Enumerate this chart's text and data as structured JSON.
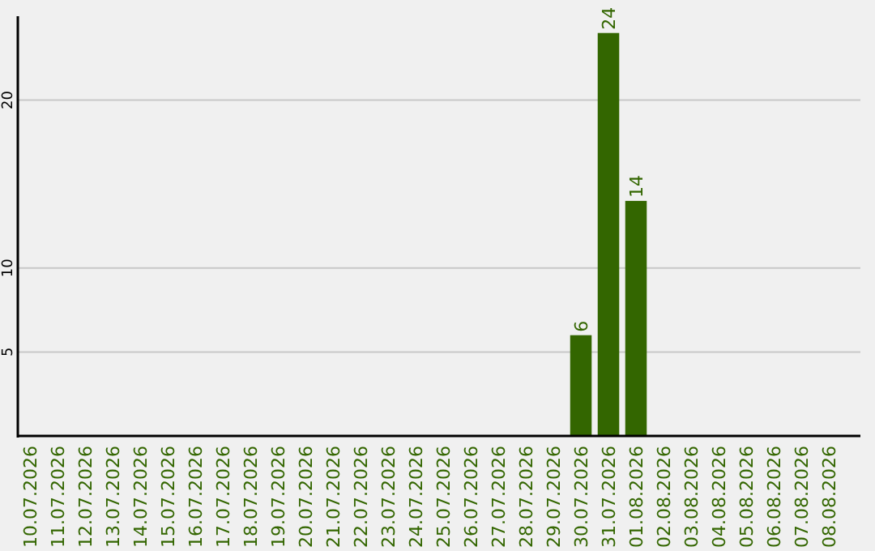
{
  "chart_data": {
    "type": "bar",
    "categories": [
      "10.07.2026",
      "11.07.2026",
      "12.07.2026",
      "13.07.2026",
      "14.07.2026",
      "15.07.2026",
      "16.07.2026",
      "17.07.2026",
      "18.07.2026",
      "19.07.2026",
      "20.07.2026",
      "21.07.2026",
      "22.07.2026",
      "23.07.2026",
      "24.07.2026",
      "25.07.2026",
      "26.07.2026",
      "27.07.2026",
      "28.07.2026",
      "29.07.2026",
      "30.07.2026",
      "31.07.2026",
      "01.08.2026",
      "02.08.2026",
      "03.08.2026",
      "04.08.2026",
      "05.08.2026",
      "06.08.2026",
      "07.08.2026",
      "08.08.2026"
    ],
    "values": [
      0,
      0,
      0,
      0,
      0,
      0,
      0,
      0,
      0,
      0,
      0,
      0,
      0,
      0,
      0,
      0,
      0,
      0,
      0,
      0,
      6,
      24,
      14,
      0,
      0,
      0,
      0,
      0,
      0,
      0
    ],
    "value_labels": [
      null,
      null,
      null,
      null,
      null,
      null,
      null,
      null,
      null,
      null,
      null,
      null,
      null,
      null,
      null,
      null,
      null,
      null,
      null,
      null,
      "6",
      "24",
      "14",
      null,
      null,
      null,
      null,
      null,
      null,
      null
    ],
    "color": "#336600",
    "ylim": [
      0,
      25
    ],
    "yticks": [
      5,
      10,
      20
    ],
    "grid": "y"
  }
}
